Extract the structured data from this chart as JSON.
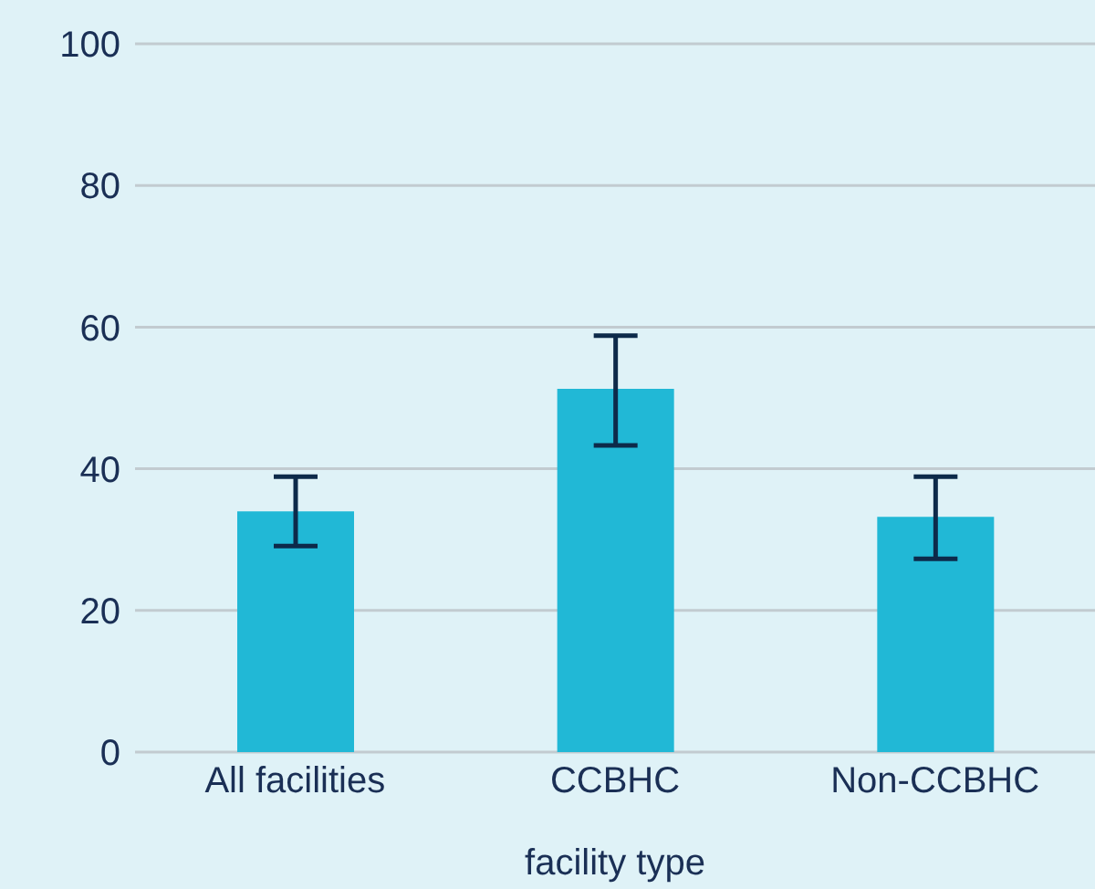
{
  "chart_data": {
    "type": "bar",
    "xlabel": "facility type",
    "categories": [
      "All facilities",
      "CCBHC",
      "Non-CCBHC"
    ],
    "values": [
      34,
      51.3,
      33.2
    ],
    "errors": [
      [
        29.1,
        38.9
      ],
      [
        43.3,
        58.8
      ],
      [
        27.3,
        38.9
      ]
    ],
    "color": "#21b8d6",
    "ylim": [
      0,
      100
    ],
    "yticks": [
      0,
      20,
      40,
      60,
      80,
      100
    ],
    "grid": "y",
    "legend": false
  }
}
